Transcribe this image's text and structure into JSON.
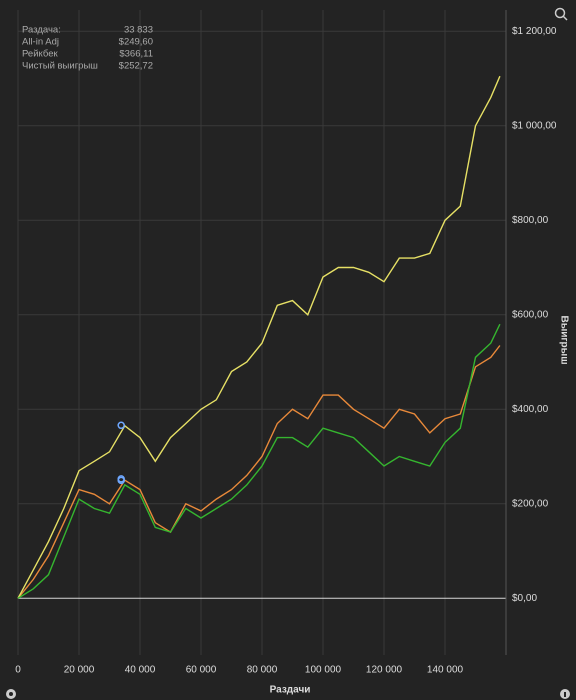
{
  "chart_data": {
    "type": "line",
    "hover": {
      "label": "Раздача:",
      "value": 33833,
      "text": "33 833"
    },
    "x": [
      0,
      5000,
      10000,
      15000,
      20000,
      25000,
      30000,
      35000,
      40000,
      45000,
      50000,
      55000,
      60000,
      65000,
      70000,
      75000,
      80000,
      85000,
      90000,
      95000,
      100000,
      105000,
      110000,
      115000,
      120000,
      125000,
      130000,
      135000,
      140000,
      145000,
      150000,
      155000,
      158000
    ],
    "series": [
      {
        "name": "All-in Adj",
        "color": "#e8893a",
        "readout": {
          "value": 249.6,
          "label": "$249,60"
        },
        "values": [
          0,
          40,
          90,
          160,
          230,
          220,
          200,
          250,
          230,
          160,
          140,
          200,
          185,
          210,
          230,
          260,
          300,
          370,
          400,
          380,
          430,
          430,
          400,
          380,
          360,
          400,
          390,
          350,
          380,
          390,
          490,
          510,
          535
        ]
      },
      {
        "name": "Рейкбек",
        "color": "#e6e065",
        "readout": {
          "value": 366.11,
          "label": "$366,11"
        },
        "values": [
          0,
          60,
          120,
          190,
          270,
          290,
          310,
          365,
          340,
          290,
          340,
          370,
          400,
          420,
          480,
          500,
          540,
          620,
          630,
          600,
          680,
          700,
          700,
          690,
          670,
          720,
          720,
          730,
          800,
          830,
          1000,
          1060,
          1105
        ]
      },
      {
        "name": "Чистый выигрыш",
        "color": "#35b52f",
        "readout": {
          "value": 252.72,
          "label": "$252,72"
        },
        "values": [
          0,
          20,
          50,
          130,
          210,
          190,
          180,
          240,
          220,
          150,
          140,
          190,
          170,
          190,
          210,
          240,
          280,
          340,
          340,
          320,
          360,
          350,
          340,
          310,
          280,
          300,
          290,
          280,
          330,
          360,
          510,
          540,
          580
        ]
      }
    ],
    "xlim": [
      0,
      160000
    ],
    "ylim": [
      -120,
      1245
    ],
    "xticks": [
      0,
      {
        "value": 20000,
        "label": "20 000"
      },
      {
        "value": 40000,
        "label": "40 000"
      },
      {
        "value": 60000,
        "label": "60 000"
      },
      {
        "value": 80000,
        "label": "80 000"
      },
      {
        "value": 100000,
        "label": "100 000"
      },
      {
        "value": 120000,
        "label": "120 000"
      },
      {
        "value": 140000,
        "label": "140 000"
      }
    ],
    "yticks": [
      {
        "value": 0,
        "label": "$0,00"
      },
      {
        "value": 200,
        "label": "$200,00"
      },
      {
        "value": 400,
        "label": "$400,00"
      },
      {
        "value": 600,
        "label": "$600,00"
      },
      {
        "value": 800,
        "label": "$800,00"
      },
      {
        "value": 1000,
        "label": "$1 000,00"
      },
      {
        "value": 1200,
        "label": "$1 200,00"
      }
    ],
    "xlabel": "Раздачи",
    "ylabel": "Выигрыш",
    "grid": true
  }
}
